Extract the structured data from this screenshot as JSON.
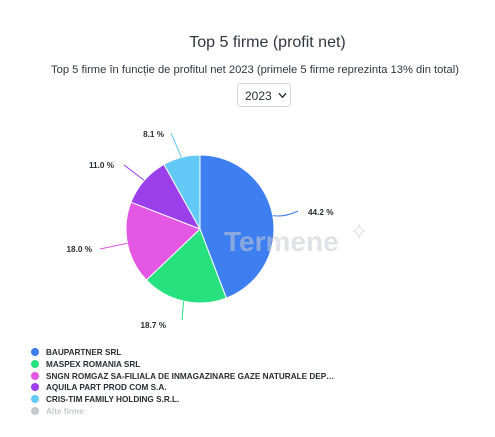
{
  "header": {
    "title": "Top 5 firme (profit net)",
    "subtitle": "Top 5 firme în funcție de profitul net 2023 (primele 5 firme reprezinta 13% din total)"
  },
  "year_select": {
    "value": "2023",
    "icon": "chevron-down-icon"
  },
  "watermark": {
    "text": "Termene",
    "icon": "sparkle-icon"
  },
  "chart_data": {
    "type": "pie",
    "slices": [
      {
        "name": "BAUPARTNER SRL",
        "value": 44.2,
        "label": "44.2 %",
        "color": "#3d7ef0"
      },
      {
        "name": "MASPEX ROMANIA SRL",
        "value": 18.7,
        "label": "18.7 %",
        "color": "#27e17f"
      },
      {
        "name": "SNGN ROMGAZ SA-FILIALA DE INMAGAZINARE GAZE NATURALE DEP…",
        "value": 18.0,
        "label": "18.0 %",
        "color": "#e357e3"
      },
      {
        "name": "AQUILA PART PROD COM S.A.",
        "value": 11.0,
        "label": "11.0 %",
        "color": "#9b3fea"
      },
      {
        "name": "CRIS-TIM FAMILY HOLDING S.R.L.",
        "value": 8.1,
        "label": "8.1 %",
        "color": "#62c9f8"
      }
    ],
    "legend": [
      {
        "label": "BAUPARTNER SRL",
        "color": "#3d7ef0"
      },
      {
        "label": "MASPEX ROMANIA SRL",
        "color": "#27e17f"
      },
      {
        "label": "SNGN ROMGAZ SA-FILIALA DE INMAGAZINARE GAZE NATURALE DEP…",
        "color": "#e357e3"
      },
      {
        "label": "AQUILA PART PROD COM S.A.",
        "color": "#9b3fea"
      },
      {
        "label": "CRIS-TIM FAMILY HOLDING S.R.L.",
        "color": "#62c9f8"
      },
      {
        "label": "Alte firme",
        "color": "#c6c8cc"
      }
    ],
    "legend_position": "bottom-left"
  }
}
